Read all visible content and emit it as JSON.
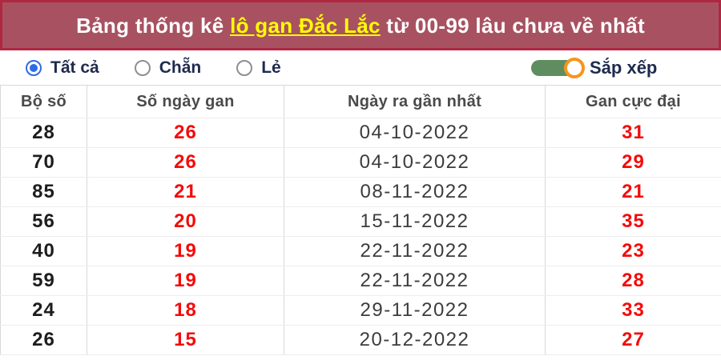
{
  "banner": {
    "title_prefix": "Bảng thống kê ",
    "title_link": "lô gan Đắc Lắc",
    "title_suffix": " từ 00-99 lâu chưa về nhất"
  },
  "colors": {
    "banner_bg": "#a85261",
    "banner_border": "#b02742",
    "link_yellow": "#ffff00",
    "radio_selected_blue": "#2e6be5",
    "toggle_track_green": "#5f8d5f",
    "toggle_knob_border_orange": "#f7941d",
    "value_red": "#f40b0b"
  },
  "filters": {
    "options": [
      {
        "label": "Tất cả",
        "selected": true
      },
      {
        "label": "Chẵn",
        "selected": false
      },
      {
        "label": "Lẻ",
        "selected": false
      }
    ],
    "sort": {
      "label": "Sắp xếp",
      "on": true
    }
  },
  "table": {
    "columns": [
      "Bộ số",
      "Số ngày gan",
      "Ngày ra gần nhất",
      "Gan cực đại"
    ],
    "rows": [
      [
        "28",
        "26",
        "04-10-2022",
        "31"
      ],
      [
        "70",
        "26",
        "04-10-2022",
        "29"
      ],
      [
        "85",
        "21",
        "08-11-2022",
        "21"
      ],
      [
        "56",
        "20",
        "15-11-2022",
        "35"
      ],
      [
        "40",
        "19",
        "22-11-2022",
        "23"
      ],
      [
        "59",
        "19",
        "22-11-2022",
        "28"
      ],
      [
        "24",
        "18",
        "29-11-2022",
        "33"
      ],
      [
        "26",
        "15",
        "20-12-2022",
        "27"
      ]
    ]
  }
}
